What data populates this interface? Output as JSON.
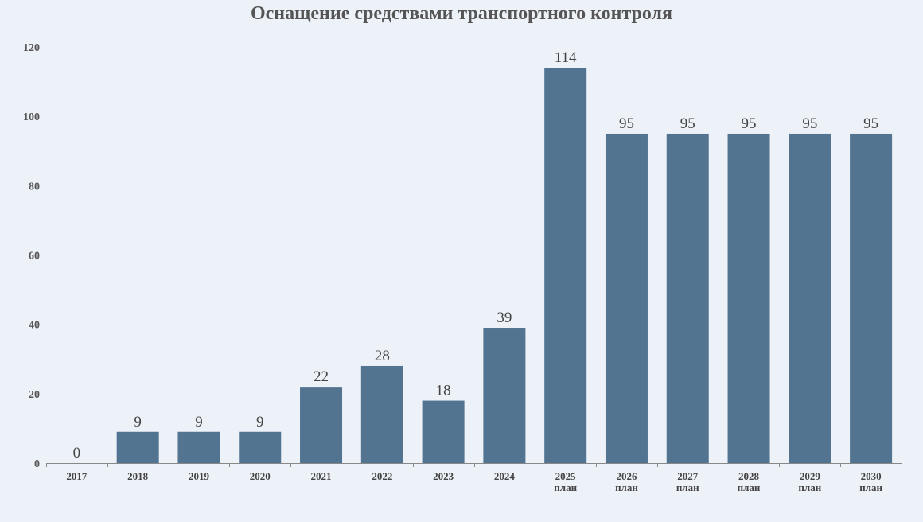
{
  "chart_data": {
    "type": "bar",
    "title": "Оснащение средствами транспортного контроля",
    "categories": [
      "2017",
      "2018",
      "2019",
      "2020",
      "2021",
      "2022",
      "2023",
      "2024",
      "2025 план",
      "2026 план",
      "2027 план",
      "2028 план",
      "2029 план",
      "2030 план"
    ],
    "category_lines": [
      [
        "2017"
      ],
      [
        "2018"
      ],
      [
        "2019"
      ],
      [
        "2020"
      ],
      [
        "2021"
      ],
      [
        "2022"
      ],
      [
        "2023"
      ],
      [
        "2024"
      ],
      [
        "2025",
        "план"
      ],
      [
        "2026",
        "план"
      ],
      [
        "2027",
        "план"
      ],
      [
        "2028",
        "план"
      ],
      [
        "2029",
        "план"
      ],
      [
        "2030",
        "план"
      ]
    ],
    "values": [
      0,
      9,
      9,
      9,
      22,
      28,
      18,
      39,
      114,
      95,
      95,
      95,
      95,
      95
    ],
    "data_labels": [
      "0",
      "9",
      "9",
      "9",
      "22",
      "28",
      "18",
      "39",
      "114",
      "95",
      "95",
      "95",
      "95",
      "95"
    ],
    "yticks": [
      0,
      20,
      40,
      60,
      80,
      100,
      120
    ],
    "ylim": [
      0,
      120
    ],
    "xlabel": "",
    "ylabel": "",
    "grid": false,
    "legend": "none",
    "colors": {
      "bar": "#527491",
      "axis": "#888888",
      "background": "#edf1f8"
    }
  }
}
